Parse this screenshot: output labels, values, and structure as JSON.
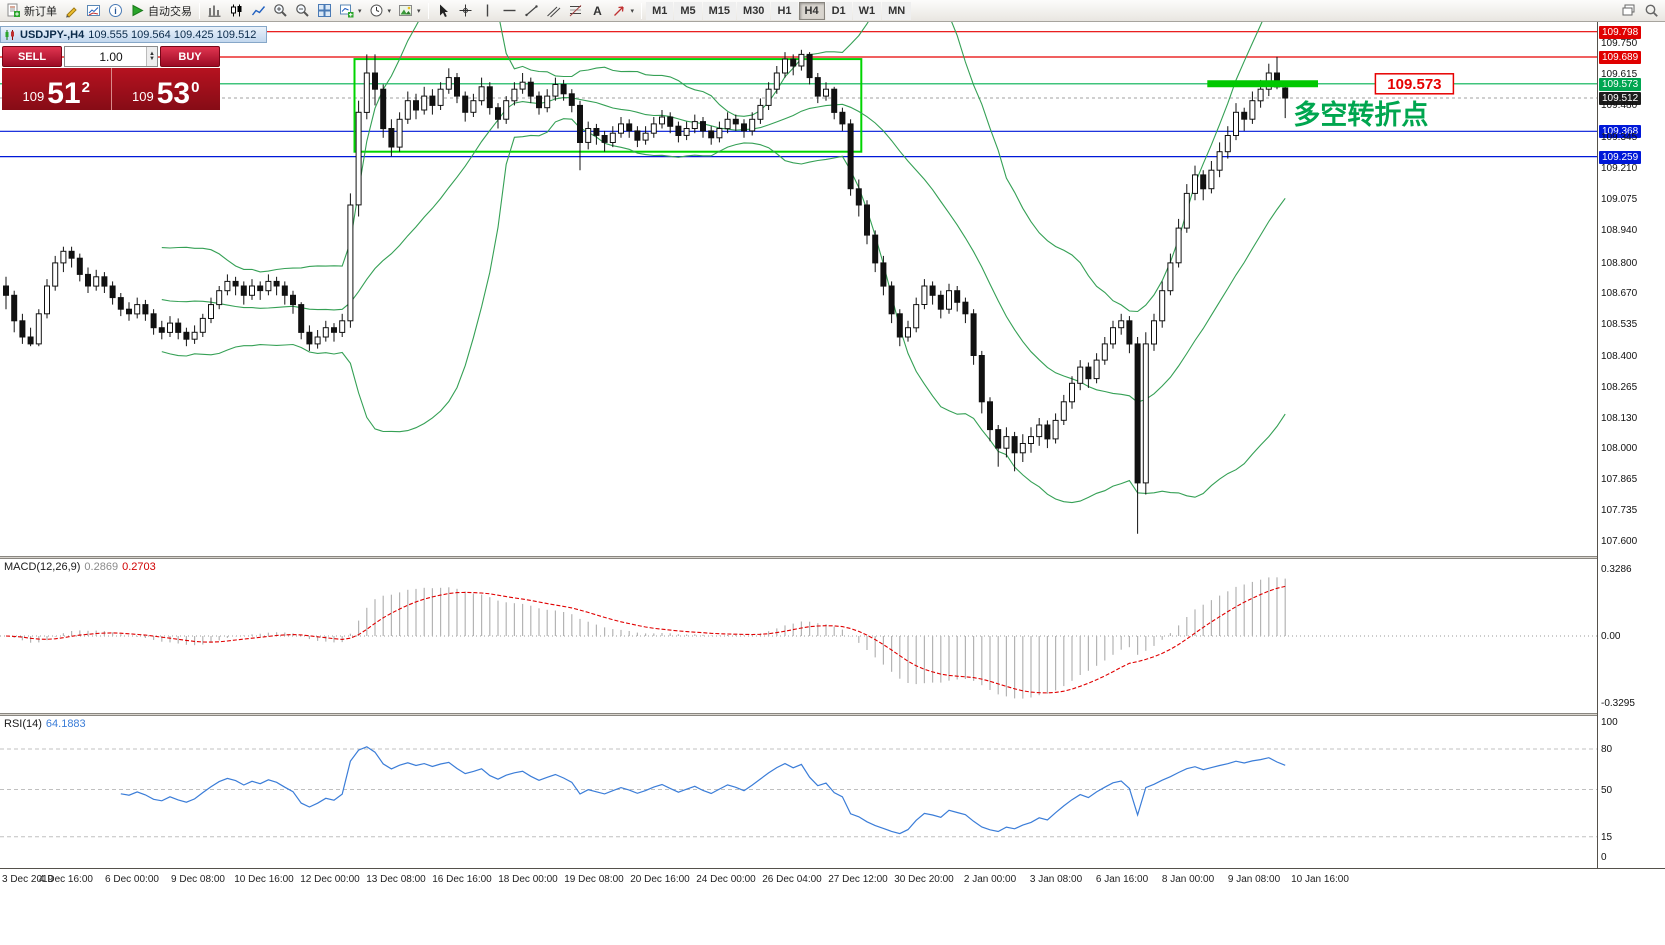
{
  "toolbar": {
    "new_order_label": "新订单",
    "autotrading_label": "自动交易",
    "periods": [
      "M1",
      "M5",
      "M15",
      "M30",
      "H1",
      "H4",
      "D1",
      "W1",
      "MN"
    ],
    "active_period": "H4"
  },
  "chart": {
    "title_symbol": "USDJPY-,H4",
    "title_ohlc": "109.555 109.564 109.425 109.512",
    "one_click": {
      "sell_label": "SELL",
      "buy_label": "BUY",
      "volume": "1.00",
      "bid_small": "109",
      "bid_big": "51",
      "bid_sup": "2",
      "ask_small": "109",
      "ask_big": "53",
      "ask_sup": "0"
    },
    "macd_label": "MACD(12,26,9)",
    "macd_value_main": "0.2869",
    "macd_value_signal": "0.2703",
    "rsi_label": "RSI(14)",
    "rsi_value": "64.1883"
  },
  "chart_data": {
    "type": "candlestick",
    "symbol": "USDJPY-",
    "timeframe": "H4",
    "price_ticks": [
      {
        "text": "109.798",
        "style": "red"
      },
      {
        "text": "109.750",
        "style": "plain"
      },
      {
        "text": "109.689",
        "style": "red"
      },
      {
        "text": "109.615",
        "style": "plain"
      },
      {
        "text": "109.573",
        "style": "green"
      },
      {
        "text": "109.512",
        "style": "black"
      },
      {
        "text": "109.480",
        "style": "plain"
      },
      {
        "text": "109.368",
        "style": "blue"
      },
      {
        "text": "109.345",
        "style": "plain"
      },
      {
        "text": "109.259",
        "style": "blue"
      },
      {
        "text": "109.210",
        "style": "plain"
      },
      {
        "text": "109.075",
        "style": "plain"
      },
      {
        "text": "108.940",
        "style": "plain"
      },
      {
        "text": "108.800",
        "style": "plain"
      },
      {
        "text": "108.670",
        "style": "plain"
      },
      {
        "text": "108.535",
        "style": "plain"
      },
      {
        "text": "108.400",
        "style": "plain"
      },
      {
        "text": "108.265",
        "style": "plain"
      },
      {
        "text": "108.130",
        "style": "plain"
      },
      {
        "text": "108.000",
        "style": "plain"
      },
      {
        "text": "107.865",
        "style": "plain"
      },
      {
        "text": "107.735",
        "style": "plain"
      },
      {
        "text": "107.600",
        "style": "plain"
      }
    ],
    "time_labels": [
      "3 Dec 2019",
      "4 Dec 16:00",
      "6 Dec 00:00",
      "9 Dec 08:00",
      "10 Dec 16:00",
      "12 Dec 00:00",
      "13 Dec 08:00",
      "16 Dec 16:00",
      "18 Dec 00:00",
      "19 Dec 08:00",
      "20 Dec 16:00",
      "24 Dec 00:00",
      "26 Dec 04:00",
      "27 Dec 12:00",
      "30 Dec 20:00",
      "2 Jan 00:00",
      "3 Jan 08:00",
      "6 Jan 16:00",
      "8 Jan 00:00",
      "9 Jan 08:00",
      "10 Jan 16:00"
    ],
    "macd_scale": {
      "top": "0.3286",
      "mid": "0.00",
      "bottom": "-0.3295"
    },
    "rsi_scale": [
      "100",
      "80",
      "50",
      "15",
      "0"
    ],
    "rsi_levels": [
      80,
      50,
      15
    ],
    "bollinger": {
      "period": 20,
      "deviation": 2,
      "color": "#35a055"
    },
    "hlines": [
      {
        "price": 109.798,
        "color": "#e60000"
      },
      {
        "price": 109.689,
        "color": "#e60000"
      },
      {
        "price": 109.573,
        "color": "#00b050"
      },
      {
        "price": 109.512,
        "color": "#b5b5b5",
        "dash": true
      },
      {
        "price": 109.368,
        "color": "#0018d8"
      },
      {
        "price": 109.259,
        "color": "#0018d8"
      }
    ],
    "rectangle": {
      "from_index": 42.5,
      "to_index": 104.3,
      "price_top": 109.68,
      "price_bottom": 109.28,
      "color": "#00d400"
    },
    "thick_line": {
      "from_index": 146.5,
      "to_index": 160,
      "price": 109.573,
      "color": "#00c800"
    },
    "annotations": [
      {
        "type": "text",
        "text": "多空转折点",
        "color": "#00a64f",
        "x_index": 157,
        "price": 109.4,
        "font_size": 27
      },
      {
        "type": "price_label",
        "text": "109.573",
        "color": "#e60000",
        "x_index": 167,
        "price": 109.573
      }
    ],
    "candles": [
      [
        108.7,
        108.74,
        108.6,
        108.66
      ],
      [
        108.66,
        108.68,
        108.5,
        108.55
      ],
      [
        108.55,
        108.58,
        108.45,
        108.48
      ],
      [
        108.48,
        108.52,
        108.44,
        108.45
      ],
      [
        108.45,
        108.6,
        108.44,
        108.58
      ],
      [
        108.58,
        108.73,
        108.56,
        108.7
      ],
      [
        108.7,
        108.83,
        108.68,
        108.8
      ],
      [
        108.8,
        108.87,
        108.76,
        108.85
      ],
      [
        108.85,
        108.87,
        108.78,
        108.82
      ],
      [
        108.82,
        108.84,
        108.72,
        108.75
      ],
      [
        108.75,
        108.78,
        108.67,
        108.7
      ],
      [
        108.7,
        108.77,
        108.68,
        108.74
      ],
      [
        108.74,
        108.76,
        108.67,
        108.7
      ],
      [
        108.7,
        108.72,
        108.62,
        108.65
      ],
      [
        108.65,
        108.67,
        108.57,
        108.6
      ],
      [
        108.6,
        108.63,
        108.55,
        108.58
      ],
      [
        108.58,
        108.65,
        108.56,
        108.62
      ],
      [
        108.62,
        108.64,
        108.55,
        108.58
      ],
      [
        108.58,
        108.6,
        108.49,
        108.52
      ],
      [
        108.52,
        108.55,
        108.47,
        108.5
      ],
      [
        108.5,
        108.57,
        108.48,
        108.54
      ],
      [
        108.54,
        108.56,
        108.47,
        108.5
      ],
      [
        108.5,
        108.52,
        108.44,
        108.47
      ],
      [
        108.47,
        108.53,
        108.45,
        108.5
      ],
      [
        108.5,
        108.58,
        108.48,
        108.56
      ],
      [
        108.56,
        108.65,
        108.54,
        108.62
      ],
      [
        108.62,
        108.7,
        108.6,
        108.68
      ],
      [
        108.68,
        108.75,
        108.66,
        108.72
      ],
      [
        108.72,
        108.74,
        108.66,
        108.7
      ],
      [
        108.7,
        108.72,
        108.62,
        108.66
      ],
      [
        108.66,
        108.73,
        108.64,
        108.7
      ],
      [
        108.7,
        108.72,
        108.64,
        108.68
      ],
      [
        108.68,
        108.75,
        108.66,
        108.72
      ],
      [
        108.72,
        108.74,
        108.66,
        108.7
      ],
      [
        108.7,
        108.72,
        108.62,
        108.66
      ],
      [
        108.66,
        108.68,
        108.58,
        108.62
      ],
      [
        108.62,
        108.63,
        108.47,
        108.5
      ],
      [
        108.5,
        108.53,
        108.42,
        108.45
      ],
      [
        108.45,
        108.51,
        108.43,
        108.48
      ],
      [
        108.48,
        108.55,
        108.46,
        108.52
      ],
      [
        108.52,
        108.54,
        108.46,
        108.5
      ],
      [
        108.5,
        108.58,
        108.48,
        108.55
      ],
      [
        108.55,
        109.1,
        108.52,
        109.05
      ],
      [
        109.05,
        109.5,
        109.0,
        109.45
      ],
      [
        109.45,
        109.7,
        109.42,
        109.62
      ],
      [
        109.62,
        109.7,
        109.48,
        109.55
      ],
      [
        109.55,
        109.57,
        109.34,
        109.38
      ],
      [
        109.38,
        109.42,
        109.26,
        109.3
      ],
      [
        109.3,
        109.45,
        109.28,
        109.42
      ],
      [
        109.42,
        109.54,
        109.4,
        109.5
      ],
      [
        109.5,
        109.53,
        109.42,
        109.46
      ],
      [
        109.46,
        109.56,
        109.44,
        109.52
      ],
      [
        109.52,
        109.55,
        109.44,
        109.48
      ],
      [
        109.48,
        109.58,
        109.46,
        109.55
      ],
      [
        109.55,
        109.64,
        109.53,
        109.6
      ],
      [
        109.6,
        109.62,
        109.49,
        109.52
      ],
      [
        109.52,
        109.54,
        109.41,
        109.45
      ],
      [
        109.45,
        109.53,
        109.43,
        109.5
      ],
      [
        109.5,
        109.6,
        109.48,
        109.56
      ],
      [
        109.56,
        109.58,
        109.44,
        109.47
      ],
      [
        109.47,
        109.49,
        109.38,
        109.42
      ],
      [
        109.42,
        109.52,
        109.4,
        109.5
      ],
      [
        109.5,
        109.58,
        109.48,
        109.55
      ],
      [
        109.55,
        109.62,
        109.53,
        109.58
      ],
      [
        109.58,
        109.6,
        109.49,
        109.52
      ],
      [
        109.52,
        109.54,
        109.44,
        109.47
      ],
      [
        109.47,
        109.55,
        109.45,
        109.52
      ],
      [
        109.52,
        109.6,
        109.5,
        109.57
      ],
      [
        109.57,
        109.59,
        109.5,
        109.53
      ],
      [
        109.53,
        109.55,
        109.45,
        109.48
      ],
      [
        109.48,
        109.5,
        109.2,
        109.32
      ],
      [
        109.32,
        109.41,
        109.29,
        109.38
      ],
      [
        109.38,
        109.4,
        109.31,
        109.35
      ],
      [
        109.35,
        109.37,
        109.28,
        109.32
      ],
      [
        109.32,
        109.39,
        109.3,
        109.36
      ],
      [
        109.36,
        109.43,
        109.34,
        109.4
      ],
      [
        109.4,
        109.42,
        109.34,
        109.37
      ],
      [
        109.37,
        109.39,
        109.3,
        109.33
      ],
      [
        109.33,
        109.39,
        109.31,
        109.36
      ],
      [
        109.36,
        109.43,
        109.34,
        109.4
      ],
      [
        109.4,
        109.46,
        109.38,
        109.43
      ],
      [
        109.43,
        109.45,
        109.36,
        109.39
      ],
      [
        109.39,
        109.41,
        109.32,
        109.35
      ],
      [
        109.35,
        109.41,
        109.33,
        109.38
      ],
      [
        109.38,
        109.44,
        109.36,
        109.41
      ],
      [
        109.41,
        109.43,
        109.34,
        109.37
      ],
      [
        109.37,
        109.39,
        109.31,
        109.34
      ],
      [
        109.34,
        109.41,
        109.32,
        109.38
      ],
      [
        109.38,
        109.45,
        109.36,
        109.42
      ],
      [
        109.42,
        109.44,
        109.37,
        109.4
      ],
      [
        109.4,
        109.42,
        109.34,
        109.37
      ],
      [
        109.37,
        109.45,
        109.35,
        109.42
      ],
      [
        109.42,
        109.51,
        109.4,
        109.48
      ],
      [
        109.48,
        109.58,
        109.46,
        109.55
      ],
      [
        109.55,
        109.65,
        109.53,
        109.62
      ],
      [
        109.62,
        109.71,
        109.6,
        109.68
      ],
      [
        109.68,
        109.7,
        109.61,
        109.65
      ],
      [
        109.65,
        109.72,
        109.63,
        109.7
      ],
      [
        109.7,
        109.71,
        109.57,
        109.6
      ],
      [
        109.6,
        109.62,
        109.49,
        109.52
      ],
      [
        109.52,
        109.58,
        109.5,
        109.55
      ],
      [
        109.55,
        109.56,
        109.42,
        109.45
      ],
      [
        109.45,
        109.47,
        109.37,
        109.4
      ],
      [
        109.4,
        109.42,
        109.09,
        109.12
      ],
      [
        109.12,
        109.16,
        109.0,
        109.05
      ],
      [
        109.05,
        109.07,
        108.88,
        108.92
      ],
      [
        108.92,
        108.94,
        108.76,
        108.8
      ],
      [
        108.8,
        108.83,
        108.66,
        108.7
      ],
      [
        108.7,
        108.72,
        108.54,
        108.58
      ],
      [
        108.58,
        108.6,
        108.44,
        108.48
      ],
      [
        108.48,
        108.55,
        108.46,
        108.52
      ],
      [
        108.52,
        108.65,
        108.5,
        108.62
      ],
      [
        108.62,
        108.73,
        108.6,
        108.7
      ],
      [
        108.7,
        108.72,
        108.62,
        108.66
      ],
      [
        108.66,
        108.68,
        108.56,
        108.6
      ],
      [
        108.6,
        108.71,
        108.58,
        108.68
      ],
      [
        108.68,
        108.7,
        108.59,
        108.63
      ],
      [
        108.63,
        108.65,
        108.54,
        108.58
      ],
      [
        108.58,
        108.6,
        108.36,
        108.4
      ],
      [
        108.4,
        108.42,
        108.15,
        108.2
      ],
      [
        108.2,
        108.22,
        108.03,
        108.08
      ],
      [
        108.08,
        108.1,
        107.92,
        108.0
      ],
      [
        108.0,
        108.09,
        107.96,
        108.05
      ],
      [
        108.05,
        108.07,
        107.9,
        107.98
      ],
      [
        107.98,
        108.06,
        107.94,
        108.02
      ],
      [
        108.02,
        108.09,
        107.98,
        108.05
      ],
      [
        108.05,
        108.13,
        108.01,
        108.1
      ],
      [
        108.1,
        108.12,
        108.0,
        108.04
      ],
      [
        108.04,
        108.15,
        108.02,
        108.12
      ],
      [
        108.12,
        108.23,
        108.1,
        108.2
      ],
      [
        108.2,
        108.31,
        108.17,
        108.28
      ],
      [
        108.28,
        108.38,
        108.25,
        108.35
      ],
      [
        108.35,
        108.37,
        108.26,
        108.3
      ],
      [
        108.3,
        108.41,
        108.28,
        108.38
      ],
      [
        108.38,
        108.48,
        108.36,
        108.45
      ],
      [
        108.45,
        108.55,
        108.43,
        108.52
      ],
      [
        108.52,
        108.58,
        108.49,
        108.55
      ],
      [
        108.55,
        108.57,
        108.41,
        108.45
      ],
      [
        108.45,
        108.48,
        107.63,
        107.85
      ],
      [
        107.85,
        108.5,
        107.8,
        108.45
      ],
      [
        108.45,
        108.58,
        108.42,
        108.55
      ],
      [
        108.55,
        108.72,
        108.52,
        108.68
      ],
      [
        108.68,
        108.84,
        108.66,
        108.8
      ],
      [
        108.8,
        108.99,
        108.78,
        108.95
      ],
      [
        108.95,
        109.14,
        108.93,
        109.1
      ],
      [
        109.1,
        109.22,
        109.07,
        109.18
      ],
      [
        109.18,
        109.2,
        109.07,
        109.12
      ],
      [
        109.12,
        109.24,
        109.1,
        109.2
      ],
      [
        109.2,
        109.32,
        109.17,
        109.28
      ],
      [
        109.28,
        109.39,
        109.25,
        109.35
      ],
      [
        109.35,
        109.49,
        109.33,
        109.45
      ],
      [
        109.45,
        109.47,
        109.37,
        109.42
      ],
      [
        109.42,
        109.54,
        109.4,
        109.5
      ],
      [
        109.5,
        109.59,
        109.47,
        109.55
      ],
      [
        109.55,
        109.66,
        109.52,
        109.62
      ],
      [
        109.62,
        109.69,
        109.55,
        109.56
      ],
      [
        109.555,
        109.564,
        109.425,
        109.512
      ]
    ]
  }
}
